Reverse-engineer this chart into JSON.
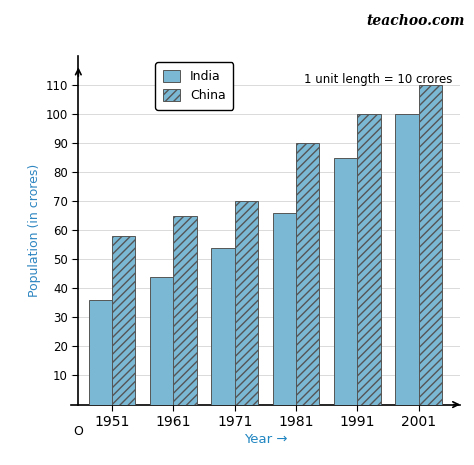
{
  "years": [
    "1951",
    "1961",
    "1971",
    "1981",
    "1991",
    "2001"
  ],
  "india": [
    36,
    44,
    54,
    66,
    85,
    100
  ],
  "china": [
    58,
    65,
    70,
    90,
    100,
    110
  ],
  "india_color": "#7ab8d4",
  "china_color": "#7ab8d4",
  "bar_width": 0.38,
  "ylim": [
    0,
    120
  ],
  "yticks": [
    10,
    20,
    30,
    40,
    50,
    60,
    70,
    80,
    90,
    100,
    110
  ],
  "ylabel": "Population (in crores)",
  "xlabel": "Year →",
  "title_text": "teachoo.com",
  "annotation": "1 unit length = 10 crores",
  "legend_india": "India",
  "legend_china": "China",
  "origin_label": "O",
  "ylabel_color": "#2e86c1",
  "xlabel_color": "#2086c1",
  "background_color": "#ffffff"
}
